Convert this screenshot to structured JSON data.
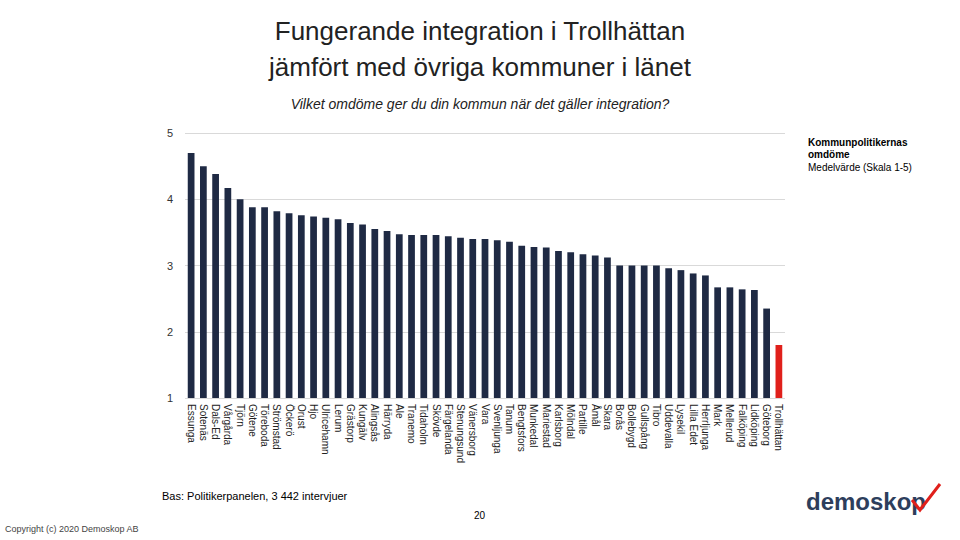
{
  "chart_data": {
    "type": "bar",
    "title": "Fungerande integration i Trollhättan\njämfört med övriga kommuner i länet",
    "subtitle": "Vilket omdöme ger du din kommun när det gäller integration?",
    "categories": [
      "Essunga",
      "Sotenäs",
      "Dals-Ed",
      "Vårgårda",
      "Tjörn",
      "Götene",
      "Töreboda",
      "Strömstad",
      "Öckerö",
      "Orust",
      "Hjo",
      "Ulricehamn",
      "Lerum",
      "Grästorp",
      "Kungälv",
      "Alingsås",
      "Härryda",
      "Ale",
      "Tranemo",
      "Tidaholm",
      "Skövde",
      "Färgelanda",
      "Stenungsund",
      "Vänersborg",
      "Vara",
      "Svenljunga",
      "Tanum",
      "Bengtsfors",
      "Munkedal",
      "Mariestad",
      "Karlsborg",
      "Mölndal",
      "Partille",
      "Åmål",
      "Skara",
      "Borås",
      "Bollebygd",
      "Gullspång",
      "Tibro",
      "Uddevalla",
      "Lysekil",
      "Lilla Edet",
      "Herrljunga",
      "Mark",
      "Mellerud",
      "Falköping",
      "Lidköping",
      "Göteborg",
      "Trollhättan"
    ],
    "values": [
      4.7,
      4.5,
      4.38,
      4.17,
      4.0,
      3.88,
      3.88,
      3.82,
      3.79,
      3.76,
      3.74,
      3.72,
      3.7,
      3.64,
      3.62,
      3.55,
      3.52,
      3.47,
      3.46,
      3.46,
      3.46,
      3.44,
      3.42,
      3.4,
      3.4,
      3.38,
      3.36,
      3.3,
      3.28,
      3.27,
      3.22,
      3.2,
      3.17,
      3.15,
      3.12,
      3.0,
      3.0,
      3.0,
      3.0,
      2.96,
      2.93,
      2.88,
      2.85,
      2.67,
      2.67,
      2.64,
      2.63,
      2.35,
      1.8
    ],
    "colors": [
      "#1f2a44",
      "#1f2a44",
      "#1f2a44",
      "#1f2a44",
      "#1f2a44",
      "#1f2a44",
      "#1f2a44",
      "#1f2a44",
      "#1f2a44",
      "#1f2a44",
      "#1f2a44",
      "#1f2a44",
      "#1f2a44",
      "#1f2a44",
      "#1f2a44",
      "#1f2a44",
      "#1f2a44",
      "#1f2a44",
      "#1f2a44",
      "#1f2a44",
      "#1f2a44",
      "#1f2a44",
      "#1f2a44",
      "#1f2a44",
      "#1f2a44",
      "#1f2a44",
      "#1f2a44",
      "#1f2a44",
      "#1f2a44",
      "#1f2a44",
      "#1f2a44",
      "#1f2a44",
      "#1f2a44",
      "#1f2a44",
      "#1f2a44",
      "#1f2a44",
      "#1f2a44",
      "#1f2a44",
      "#1f2a44",
      "#1f2a44",
      "#1f2a44",
      "#1f2a44",
      "#1f2a44",
      "#1f2a44",
      "#1f2a44",
      "#1f2a44",
      "#1f2a44",
      "#1f2a44",
      "#e0201b"
    ],
    "ylim": [
      1,
      5
    ],
    "yticks": [
      1,
      2,
      3,
      4,
      5
    ],
    "grid": true,
    "annotations": [
      "Kommunpolitikernas omdöme",
      "Medelvärde (Skala 1-5)",
      "Bas: Politikerpanelen, 3 442 intervjuer",
      "20",
      "Copyright (c) 2020 Demoskop AB",
      "demoskop"
    ]
  }
}
